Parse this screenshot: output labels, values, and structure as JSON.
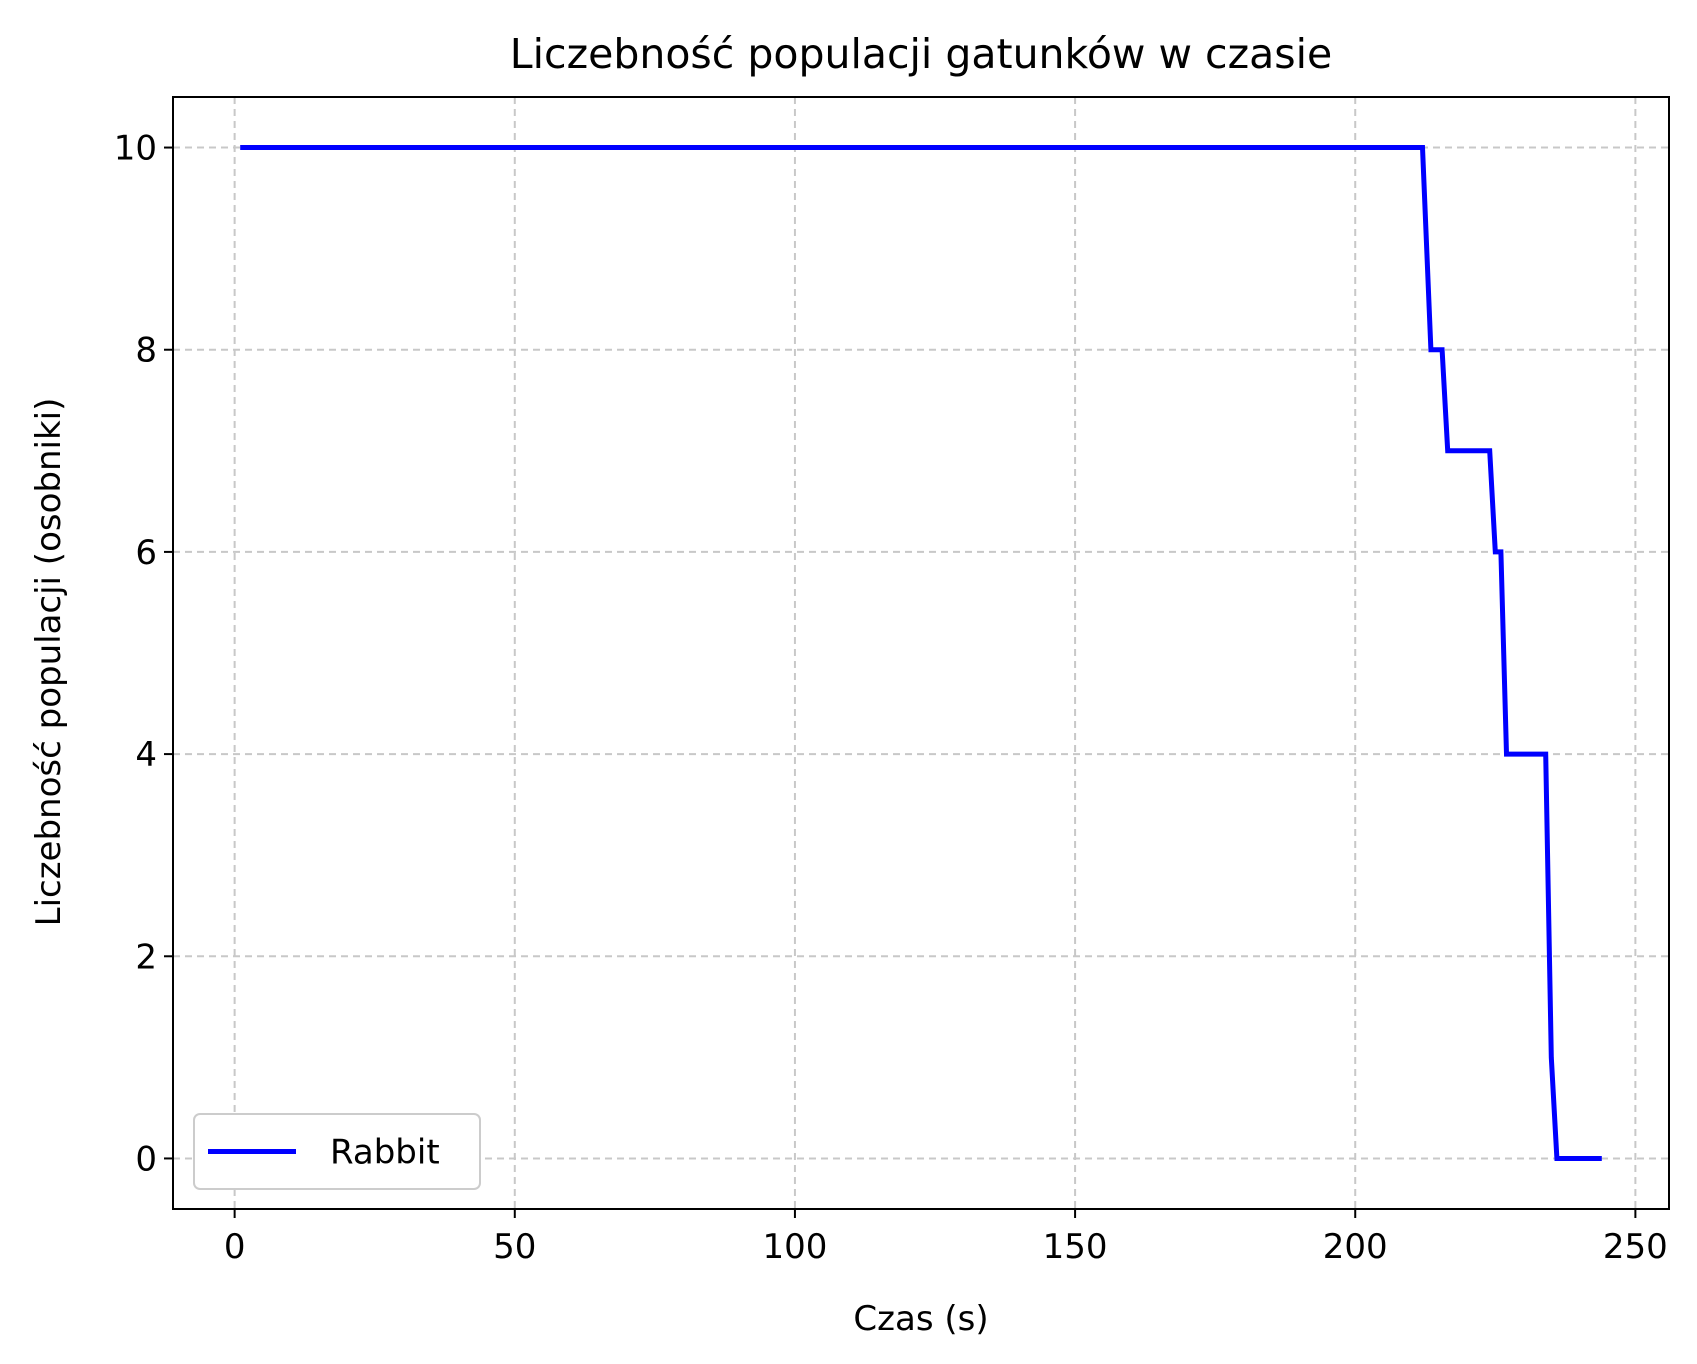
{
  "chart_data": {
    "type": "line",
    "title": "Liczebność populacji gatunków w czasie",
    "xlabel": "Czas (s)",
    "ylabel": "Liczebność populacji (osobniki)",
    "xlim": [
      -11,
      256
    ],
    "ylim": [
      -0.5,
      10.5
    ],
    "xticks": [
      0,
      50,
      100,
      150,
      200,
      250
    ],
    "yticks": [
      0,
      2,
      4,
      6,
      8,
      10
    ],
    "grid": true,
    "grid_style": "dashed",
    "legend_position": "lower-left",
    "series": [
      {
        "name": "Rabbit",
        "color": "#0000ff",
        "x": [
          1,
          212,
          213.5,
          215.5,
          216.5,
          224,
          225,
          226,
          227,
          234,
          235,
          236,
          244
        ],
        "y": [
          10,
          10,
          8,
          8,
          7,
          7,
          6,
          6,
          4,
          4,
          1,
          0,
          0
        ]
      }
    ]
  }
}
